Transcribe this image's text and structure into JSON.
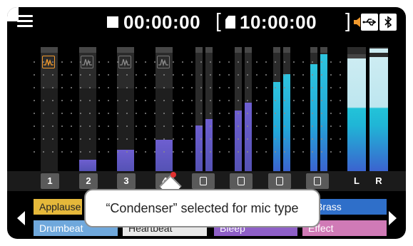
{
  "status_bar": {
    "menu_icon": "hamburger-menu-icon",
    "transport_icon": "stop-icon",
    "elapsed_time": "00:00:00",
    "bracket_open": "[",
    "bracket_close": "]",
    "sd_icon": "sd-card-icon",
    "remaining_time": "10:00:00",
    "indicators": [
      "speaker-mute-icon",
      "usb-icon",
      "bluetooth-icon",
      "sd-card-icon"
    ],
    "accent_colors": {
      "mute": "#f29a2e",
      "waveform_selected": "#f29a2e"
    }
  },
  "channels": [
    {
      "label": "1",
      "level": 0.0,
      "peak_top": 0.0
    },
    {
      "label": "2",
      "level": 0.09,
      "peak_top": 0.0
    },
    {
      "label": "3",
      "level": 0.17,
      "peak_top": 0.0
    },
    {
      "label": "4",
      "level": 0.25,
      "peak_top": 0.0
    },
    {
      "label": "",
      "icon": "usb-icon",
      "level": [
        0.37,
        0.42
      ]
    },
    {
      "label": "",
      "icon": "phone-icon",
      "level": [
        0.49,
        0.55
      ]
    },
    {
      "label": "",
      "icon": "bluetooth-icon",
      "level": [
        0.72,
        0.78
      ]
    },
    {
      "label": "",
      "icon": "keyboard-icon",
      "level": [
        0.86,
        0.94
      ]
    },
    {
      "label": "L",
      "level": 1.0
    },
    {
      "label": "R",
      "level": 1.0
    }
  ],
  "pads_row1": [
    {
      "label": "Applause",
      "color": "#e5b83a"
    },
    {
      "label": "Brass",
      "color": "#2f6fc9"
    }
  ],
  "pads_row2": [
    {
      "label": "Drumbeat",
      "color": "#6fa8dc"
    },
    {
      "label": "Heartbeat",
      "color": "#e8e8e8"
    },
    {
      "label": "Bleep",
      "color": "#8e5fc7"
    },
    {
      "label": "Effect",
      "color": "#d07ab6"
    }
  ],
  "tooltip": {
    "text": "“Condenser” selected for mic type"
  },
  "page_indicator": {
    "count": 8,
    "current": 1
  }
}
